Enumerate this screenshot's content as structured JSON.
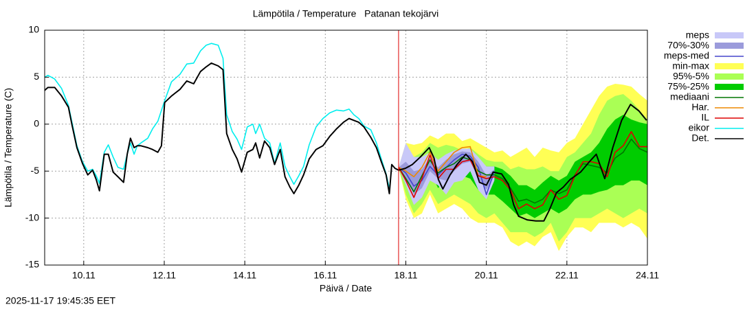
{
  "chart_data": {
    "type": "line",
    "title": "Lämpötila / Temperature   Patanan tekojärvi",
    "x_label": "Päivä / Date",
    "y_label": "Lämpötila / Temperature (C)",
    "timestamp": "2025-11-17 19:45:35 EET",
    "xlim": [
      9.03,
      24.0
    ],
    "xticks": [
      {
        "value": 10,
        "label": "10.11"
      },
      {
        "value": 12,
        "label": "12.11"
      },
      {
        "value": 14,
        "label": "14.11"
      },
      {
        "value": 16,
        "label": "16.11"
      },
      {
        "value": 18,
        "label": "18.11"
      },
      {
        "value": 20,
        "label": "20.11"
      },
      {
        "value": 22,
        "label": "22.11"
      },
      {
        "value": 24,
        "label": "24.11"
      }
    ],
    "ylim": [
      -15,
      10
    ],
    "yticks": [
      -15,
      -10,
      -5,
      0,
      5,
      10
    ],
    "grid": true,
    "legend": "right",
    "vline": {
      "x": 17.82,
      "color": "#dd0000"
    },
    "x": [
      17.82,
      18.0,
      18.2,
      18.4,
      18.6,
      18.8,
      19.0,
      19.2,
      19.4,
      19.6,
      19.8,
      20.0,
      20.2,
      20.4,
      20.6,
      20.8,
      21.0,
      21.2,
      21.4,
      21.6,
      21.8,
      22.0,
      22.2,
      22.4,
      22.6,
      22.8,
      23.0,
      23.2,
      23.4,
      23.6,
      23.8,
      24.0
    ],
    "series": [
      {
        "name": "meps",
        "kind": "band",
        "color": "#c8c8f8",
        "x": [
          17.82,
          18.0,
          18.2,
          18.4,
          18.6,
          18.8,
          19.0,
          19.2,
          19.4,
          19.6,
          19.8,
          20.0,
          20.2
        ],
        "low": [
          -4.6,
          -6.5,
          -8.6,
          -7.8,
          -6.0,
          -6.5,
          -7.5,
          -6.2,
          -6.0,
          -5.0,
          -7.0,
          -8.0,
          -6.0
        ],
        "high": [
          -4.6,
          -2.0,
          -3.5,
          -3.5,
          -3.0,
          -3.8,
          -3.2,
          -2.8,
          -2.6,
          -2.6,
          -3.5,
          -4.5,
          -4.5
        ]
      },
      {
        "name": "70%-30%",
        "kind": "band",
        "color": "#9b9bdb",
        "x": [
          17.82,
          18.0,
          18.2,
          18.4,
          18.6,
          18.8,
          19.0,
          19.2,
          19.4,
          19.6,
          19.8,
          20.0,
          20.2
        ],
        "low": [
          -4.6,
          -5.8,
          -7.5,
          -6.8,
          -5.0,
          -5.8,
          -6.0,
          -5.0,
          -4.2,
          -4.0,
          -5.8,
          -7.0,
          -5.5
        ],
        "high": [
          -4.6,
          -4.0,
          -5.0,
          -4.8,
          -3.6,
          -4.6,
          -3.8,
          -3.2,
          -2.9,
          -3.0,
          -4.0,
          -5.5,
          -4.8
        ]
      },
      {
        "name": "meps-med",
        "kind": "line",
        "color": "#4444cc",
        "values": [
          -4.6,
          -5.2,
          -6.6,
          -6.0,
          -4.5,
          -5.4,
          -4.6,
          -3.8,
          -3.2,
          -3.4,
          -4.6,
          -7.5,
          -5.0,
          null,
          null,
          null,
          null,
          null,
          null,
          null,
          null,
          null,
          null,
          null,
          null,
          null,
          null,
          null,
          null,
          null,
          null,
          null
        ]
      },
      {
        "name": "min-max",
        "kind": "band",
        "color": "#ffff55",
        "low": [
          -4.6,
          -8,
          -10,
          -9.5,
          -7.5,
          -9.5,
          -9,
          -8.5,
          -9,
          -10,
          -10.5,
          -10.5,
          -10.5,
          -11,
          -12.5,
          -13,
          -12.5,
          -13,
          -12,
          -11.5,
          -13.5,
          -12,
          -11,
          -11,
          -11.5,
          -10.5,
          -10.5,
          -10.5,
          -11,
          -10.5,
          -11,
          -12.2
        ],
        "high": [
          -4.6,
          -2.0,
          -2.2,
          -2.0,
          -1.2,
          -1.6,
          -1.0,
          -1.0,
          -1.8,
          -1.5,
          -2.0,
          -2.5,
          -3.0,
          -2.8,
          -3.5,
          -3.0,
          -2.5,
          -3.5,
          -2.5,
          -2.8,
          -3.0,
          -2.0,
          -1.5,
          0.0,
          1.5,
          3.0,
          4.0,
          4.3,
          4.2,
          4.0,
          3.2,
          2.5
        ]
      },
      {
        "name": "95%-5%",
        "kind": "band",
        "color": "#aaff55",
        "low": [
          -4.6,
          -7.5,
          -9.5,
          -8.5,
          -7.0,
          -8.5,
          -8.0,
          -7.5,
          -8.0,
          -8.5,
          -9.5,
          -10,
          -9.5,
          -10.5,
          -11.5,
          -11.5,
          -11.5,
          -12,
          -11.5,
          -10.5,
          -12.5,
          -11.5,
          -10,
          -10,
          -10,
          -9.5,
          -9,
          -9.5,
          -10,
          -9.5,
          -9,
          -9.5
        ],
        "high": [
          -4.6,
          -3.0,
          -3.5,
          -3.0,
          -2.0,
          -2.5,
          -2.2,
          -2.4,
          -2.8,
          -2.5,
          -3.2,
          -3.8,
          -4.0,
          -4.0,
          -4.8,
          -4.5,
          -4.8,
          -4.8,
          -4.5,
          -5.0,
          -5.0,
          -3.5,
          -3.0,
          -2.0,
          -1.0,
          1.0,
          2.5,
          3.0,
          3.2,
          2.5,
          1.5,
          0.5
        ]
      },
      {
        "name": "75%-25%",
        "kind": "band",
        "color": "#00cc00",
        "low": [
          -4.6,
          -6.5,
          -8.3,
          -6.8,
          -5.0,
          -6.8,
          -6.0,
          -5.8,
          -5.5,
          -5.8,
          -7.0,
          -7.5,
          -7.5,
          -8.2,
          -9.0,
          -9.8,
          -9.5,
          -10,
          -9.5,
          -9.0,
          -9.5,
          -9.0,
          -8.0,
          -7.5,
          -7.5,
          -7.2,
          -7.0,
          -6.5,
          -6.5,
          -6.0,
          -6.0,
          -6.5
        ],
        "high": [
          -4.6,
          -4.5,
          -5.0,
          -4.2,
          -2.8,
          -4.2,
          -3.5,
          -3.3,
          -3.0,
          -3.2,
          -4.2,
          -4.5,
          -4.5,
          -4.8,
          -5.5,
          -6.5,
          -6.5,
          -7.0,
          -6.2,
          -5.5,
          -6.0,
          -5.5,
          -4.0,
          -3.5,
          -3.0,
          -2.0,
          -0.5,
          0.5,
          1.0,
          0.5,
          0.2,
          0.0
        ]
      },
      {
        "name": "mediaani",
        "kind": "line",
        "color": "#007700",
        "values": [
          -4.6,
          -5.8,
          -7.2,
          -5.5,
          -3.8,
          -5.2,
          -4.6,
          -4.2,
          -3.5,
          -3.8,
          -5.0,
          -5.4,
          -5.4,
          -5.8,
          -6.8,
          -8.2,
          -8.0,
          -8.4,
          -8.0,
          -7.0,
          -7.4,
          -7.0,
          -5.4,
          -4.2,
          -4.4,
          -4.6,
          -5.2,
          -3.6,
          -3.0,
          -1.6,
          -2.6,
          -3.0
        ]
      },
      {
        "name": "Har.",
        "kind": "line",
        "color": "#ee8800",
        "values": [
          -4.6,
          -5.0,
          -5.6,
          -4.6,
          -3.0,
          -5.0,
          -4.0,
          -3.0,
          -2.5,
          -2.4,
          -5.5,
          -5.6,
          null,
          null,
          null,
          null,
          null,
          null,
          null,
          null,
          null,
          null,
          null,
          null,
          null,
          null,
          null,
          null,
          null,
          null,
          null,
          null
        ]
      },
      {
        "name": "IL",
        "kind": "line",
        "color": "#dd0000",
        "values": [
          -4.6,
          -6.0,
          -7.8,
          -5.8,
          -3.3,
          -5.8,
          -4.8,
          -4.8,
          -4.0,
          -3.8,
          -5.5,
          -5.8,
          -5.6,
          -6.0,
          -7.0,
          -9.0,
          -8.5,
          -9.0,
          -8.6,
          -7.0,
          -8.0,
          -7.6,
          -5.5,
          -4.0,
          -4.0,
          -4.2,
          -5.6,
          -3.0,
          -2.3,
          -0.8,
          -2.4,
          -2.4
        ]
      },
      {
        "name": "eikor",
        "kind": "line",
        "color": "#00eeee",
        "x": [
          9.03,
          9.11,
          9.28,
          9.45,
          9.62,
          9.83,
          9.97,
          10.1,
          10.22,
          10.31,
          10.39,
          10.51,
          10.61,
          10.73,
          10.85,
          10.99,
          11.08,
          11.16,
          11.25,
          11.33,
          11.42,
          11.59,
          11.71,
          11.84,
          12.01,
          12.18,
          12.39,
          12.56,
          12.73,
          12.9,
          13.04,
          13.17,
          13.34,
          13.46,
          13.55,
          13.69,
          13.81,
          13.92,
          14.06,
          14.2,
          14.27,
          14.37,
          14.49,
          14.62,
          14.74,
          14.88,
          15.0,
          15.12,
          15.22,
          15.34,
          15.46,
          15.6,
          15.77,
          15.94,
          16.11,
          16.28,
          16.45,
          16.59,
          16.71,
          16.83,
          16.96,
          17.13,
          17.27,
          17.39,
          17.51,
          17.59
        ],
        "values": [
          5.0,
          5.2,
          4.8,
          3.8,
          2.0,
          -2.3,
          -4.0,
          -5.0,
          -4.8,
          -5.5,
          -6.3,
          -3.0,
          -2.2,
          -3.5,
          -4.6,
          -4.8,
          -3.2,
          -2.0,
          -3.2,
          -2.3,
          -2.0,
          -1.5,
          -0.5,
          0.3,
          2.5,
          4.5,
          5.3,
          6.4,
          6.5,
          7.8,
          8.4,
          8.6,
          8.4,
          7.0,
          1.0,
          -0.8,
          -1.6,
          -2.7,
          -0.3,
          0.0,
          -1.0,
          0.0,
          -1.5,
          -2.0,
          -4.2,
          -2.0,
          -4.5,
          -5.6,
          -6.4,
          -5.5,
          -4.5,
          -2.2,
          -0.3,
          0.6,
          1.2,
          1.5,
          1.4,
          1.6,
          1.0,
          0.6,
          -0.2,
          -0.6,
          -2.0,
          -3.7,
          -5.3,
          -6.8
        ]
      },
      {
        "name": "Det.",
        "kind": "line",
        "color": "#000000",
        "x": [
          9.03,
          9.11,
          9.28,
          9.45,
          9.62,
          9.71,
          9.83,
          9.97,
          10.1,
          10.22,
          10.31,
          10.39,
          10.51,
          10.61,
          10.73,
          10.85,
          10.99,
          11.08,
          11.16,
          11.25,
          11.33,
          11.42,
          11.59,
          11.71,
          11.84,
          11.93,
          12.01,
          12.18,
          12.39,
          12.56,
          12.73,
          12.9,
          13.04,
          13.17,
          13.34,
          13.46,
          13.55,
          13.69,
          13.81,
          13.92,
          14.06,
          14.2,
          14.27,
          14.37,
          14.49,
          14.62,
          14.74,
          14.88,
          15.0,
          15.12,
          15.22,
          15.34,
          15.46,
          15.6,
          15.77,
          15.94,
          16.11,
          16.28,
          16.45,
          16.59,
          16.71,
          16.83,
          16.96,
          17.13,
          17.27,
          17.39,
          17.51,
          17.59,
          17.65,
          17.73,
          17.82,
          17.99,
          18.16,
          18.36,
          18.58,
          18.7,
          18.81,
          18.92,
          19.1,
          19.27,
          19.49,
          19.66,
          19.83,
          20.0,
          20.17,
          20.38,
          20.55,
          20.68,
          20.8,
          21.02,
          21.23,
          21.43,
          21.57,
          21.74,
          21.91,
          22.08,
          22.34,
          22.56,
          22.73,
          22.94,
          23.14,
          23.36,
          23.58,
          23.79,
          23.98
        ],
        "values": [
          3.6,
          3.9,
          3.9,
          3.0,
          1.8,
          -0.1,
          -2.5,
          -4.2,
          -5.4,
          -4.9,
          -5.9,
          -7.1,
          -3.2,
          -3.2,
          -5.1,
          -5.6,
          -6.2,
          -3.2,
          -1.5,
          -2.5,
          -2.3,
          -2.3,
          -2.5,
          -2.7,
          -3.0,
          -2.3,
          2.3,
          3.0,
          3.7,
          4.6,
          4.3,
          5.6,
          6.1,
          6.5,
          6.2,
          5.8,
          -1.0,
          -2.7,
          -3.7,
          -5.1,
          -3.0,
          -2.7,
          -2.0,
          -3.6,
          -1.8,
          -2.5,
          -4.3,
          -2.7,
          -5.6,
          -6.7,
          -7.4,
          -6.5,
          -5.4,
          -3.7,
          -2.7,
          -2.3,
          -1.3,
          -0.5,
          0.2,
          0.6,
          0.4,
          0.2,
          -0.3,
          -1.4,
          -2.5,
          -4.0,
          -5.4,
          -7.4,
          -4.3,
          -4.7,
          -4.9,
          -4.7,
          -4.3,
          -3.5,
          -2.5,
          -3.6,
          -5.9,
          -6.9,
          -5.4,
          -4.3,
          -3.2,
          -4.0,
          -6.2,
          -6.5,
          -5.1,
          -5.3,
          -6.4,
          -8.6,
          -9.8,
          -10.2,
          -10.3,
          -10.3,
          -9.1,
          -7.3,
          -6.7,
          -5.9,
          -5.1,
          -4.0,
          -3.2,
          -5.8,
          -2.5,
          0.4,
          2.1,
          1.4,
          0.4
        ]
      }
    ]
  }
}
